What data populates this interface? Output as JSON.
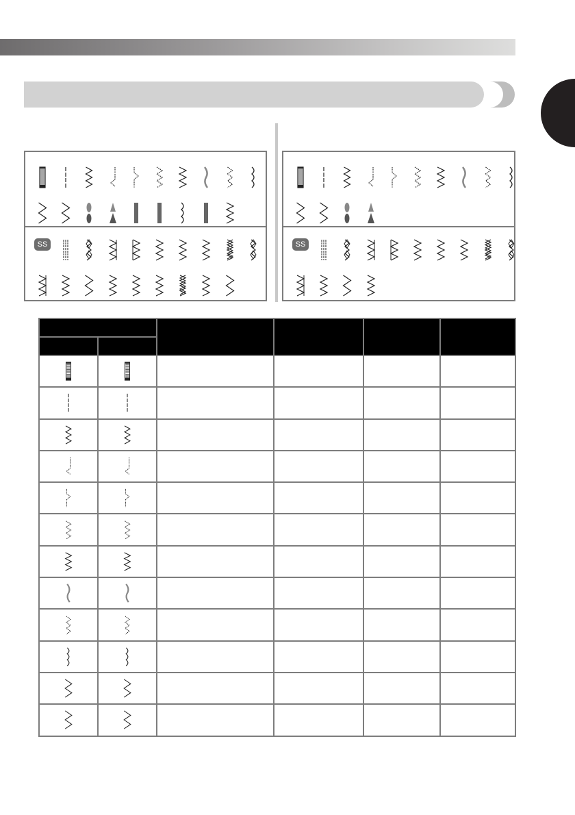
{
  "colors": {
    "header_fill": "#000000",
    "grid": "#7d7d7d",
    "section_bar": "#d2d2d2",
    "tab": "#231f20"
  },
  "panels": [
    {
      "rows": [
        [
          "buttonhole-icon",
          "straight-icon",
          "zigzag-icon",
          "blind-hem-left-icon",
          "blind-hem-right-icon",
          "dotted-zigzag-icon",
          "elastic-zigzag-icon",
          "shell-icon",
          "triple-zigzag-icon",
          "wavy-icon"
        ],
        [
          "wide-zigzag-left-icon",
          "wide-zigzag-right-icon",
          "bartack-oval-icon",
          "bartack-arrow-icon",
          "satin-curve-icon",
          "satin-column-icon",
          "serpentine-icon",
          "step-satin-icon",
          "feather-icon"
        ],
        [
          "ss",
          "triple-straight-icon",
          "diamond-icon",
          "triangle-left-icon",
          "triangle-right-icon",
          "chevron-icon",
          "fringe-icon",
          "hook-icon",
          "cross-stitch-icon",
          "lattice-icon"
        ],
        [
          "ladder-icon",
          "herringbone-icon",
          "zigzag-step-icon",
          "zigzag-knot-icon",
          "z-satin-icon",
          "arrow-zigzag-icon",
          "cross-zigzag-icon",
          "double-hook-icon",
          "n-zigzag-icon"
        ]
      ]
    },
    {
      "rows": [
        [
          "buttonhole-icon",
          "straight-icon",
          "zigzag-icon",
          "blind-hem-left-icon",
          "blind-hem-right-icon",
          "dotted-zigzag-icon",
          "elastic-zigzag-icon",
          "shell-icon",
          "triple-zigzag-icon",
          "wavy-icon"
        ],
        [
          "wide-zigzag-left-icon",
          "wide-zigzag-right-icon",
          "bartack-oval-icon",
          "bartack-arrow-icon"
        ],
        [
          "ss",
          "triple-straight-icon",
          "diamond-icon",
          "triangle-left-icon",
          "triangle-right-icon",
          "chevron-icon",
          "fringe-icon",
          "hook-icon",
          "cross-stitch-icon",
          "lattice-icon"
        ],
        [
          "ladder-icon",
          "herringbone-icon",
          "zigzag-step-icon",
          "zigzag-knot-icon"
        ]
      ]
    }
  ],
  "ss_label": "SS",
  "table": {
    "rows": [
      "buttonhole-icon",
      "straight-icon",
      "zigzag-icon",
      "blind-hem-left-icon",
      "blind-hem-right-icon",
      "dotted-zigzag-icon",
      "elastic-zigzag-icon",
      "shell-icon",
      "triple-zigzag-icon",
      "wavy-icon",
      "wide-zigzag-left-icon",
      "wide-zigzag-right-icon"
    ]
  }
}
